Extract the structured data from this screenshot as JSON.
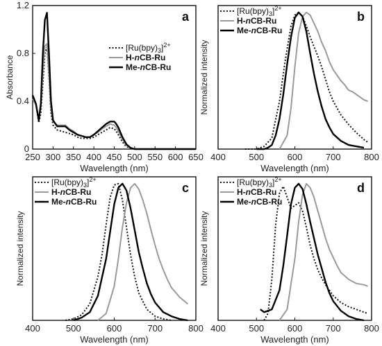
{
  "chart_data": [
    {
      "type": "line",
      "panel_label": "a",
      "xlabel": "Wavelength (nm)",
      "ylabel": "Absorbance",
      "xlim": [
        250,
        650
      ],
      "ylim": [
        0,
        1.2
      ],
      "xticks": [
        "250",
        "300",
        "350",
        "400",
        "450",
        "500",
        "550",
        "600",
        "650"
      ],
      "yticks": [
        "0",
        "0.4",
        "0.8",
        "1.2"
      ],
      "legend_position": "middle-right",
      "series": [
        {
          "name": "[Ru(bpy)3]2+",
          "style": "dotted",
          "color": "#111111",
          "x": [
            250,
            258,
            265,
            270,
            275,
            280,
            285,
            290,
            295,
            300,
            310,
            320,
            330,
            340,
            350,
            360,
            370,
            380,
            390,
            400,
            410,
            420,
            430,
            440,
            450,
            455,
            460,
            470,
            480,
            490,
            500,
            520,
            550,
            600,
            650
          ],
          "y": [
            0.44,
            0.38,
            0.22,
            0.3,
            0.55,
            0.8,
            0.85,
            0.6,
            0.3,
            0.2,
            0.16,
            0.15,
            0.14,
            0.13,
            0.12,
            0.1,
            0.09,
            0.09,
            0.09,
            0.1,
            0.12,
            0.14,
            0.16,
            0.18,
            0.17,
            0.15,
            0.12,
            0.06,
            0.02,
            0.01,
            0.0,
            0.0,
            0.0,
            0.0,
            0.0
          ]
        },
        {
          "name": "H-nCB-Ru",
          "style": "solid",
          "color": "#9a9a9a",
          "x": [
            250,
            258,
            265,
            270,
            275,
            280,
            285,
            290,
            295,
            300,
            310,
            320,
            330,
            340,
            350,
            360,
            370,
            380,
            390,
            400,
            410,
            420,
            430,
            440,
            450,
            455,
            460,
            470,
            480,
            490,
            500,
            520,
            550,
            600,
            650
          ],
          "y": [
            0.42,
            0.37,
            0.25,
            0.35,
            0.65,
            0.86,
            0.88,
            0.62,
            0.34,
            0.23,
            0.2,
            0.2,
            0.2,
            0.17,
            0.15,
            0.12,
            0.11,
            0.1,
            0.1,
            0.12,
            0.14,
            0.17,
            0.19,
            0.21,
            0.2,
            0.18,
            0.15,
            0.08,
            0.03,
            0.01,
            0.0,
            0.0,
            0.0,
            0.0,
            0.0
          ]
        },
        {
          "name": "Me-nCB-Ru",
          "style": "solid",
          "color": "#000000",
          "x": [
            250,
            258,
            265,
            270,
            275,
            280,
            285,
            290,
            295,
            300,
            310,
            320,
            330,
            340,
            350,
            360,
            370,
            380,
            390,
            400,
            410,
            420,
            430,
            440,
            450,
            455,
            460,
            470,
            480,
            490,
            500,
            520,
            550,
            600,
            650
          ],
          "y": [
            0.45,
            0.38,
            0.24,
            0.38,
            0.8,
            1.08,
            1.14,
            0.8,
            0.4,
            0.24,
            0.19,
            0.19,
            0.19,
            0.16,
            0.14,
            0.12,
            0.11,
            0.1,
            0.1,
            0.12,
            0.15,
            0.18,
            0.21,
            0.23,
            0.23,
            0.21,
            0.18,
            0.1,
            0.04,
            0.01,
            0.0,
            0.0,
            0.0,
            0.0,
            0.0
          ]
        }
      ]
    },
    {
      "type": "line",
      "panel_label": "b",
      "xlabel": "Wavelength (nm)",
      "ylabel": "Normalized  intensity",
      "xlim": [
        400,
        800
      ],
      "ylim": [
        0,
        1.05
      ],
      "xticks": [
        "400",
        "500",
        "600",
        "700",
        "800"
      ],
      "yticks": [],
      "legend_position": "top-left",
      "series": [
        {
          "name": "[Ru(bpy)3]2+",
          "style": "dotted",
          "color": "#111111",
          "x": [
            470,
            500,
            520,
            540,
            560,
            575,
            590,
            600,
            610,
            620,
            630,
            640,
            650,
            660,
            670,
            680,
            690,
            700,
            720,
            740,
            760,
            780,
            790
          ],
          "y": [
            0.0,
            0.0,
            0.02,
            0.08,
            0.35,
            0.65,
            0.9,
            0.98,
            1.0,
            0.97,
            0.9,
            0.82,
            0.75,
            0.68,
            0.6,
            0.51,
            0.42,
            0.35,
            0.25,
            0.18,
            0.12,
            0.07,
            0.05
          ]
        },
        {
          "name": "H-nCB-Ru",
          "style": "solid",
          "color": "#9a9a9a",
          "x": [
            560,
            580,
            590,
            600,
            610,
            620,
            630,
            640,
            650,
            660,
            670,
            680,
            690,
            700,
            710,
            720,
            730,
            740,
            750,
            760,
            770,
            780,
            790
          ],
          "y": [
            0.0,
            0.1,
            0.3,
            0.6,
            0.85,
            0.97,
            1.0,
            0.98,
            0.92,
            0.86,
            0.78,
            0.72,
            0.64,
            0.58,
            0.54,
            0.5,
            0.47,
            0.43,
            0.42,
            0.4,
            0.38,
            0.36,
            0.35
          ]
        },
        {
          "name": "Me-nCB-Ru",
          "style": "solid",
          "color": "#000000",
          "x": [
            500,
            520,
            530,
            540,
            550,
            560,
            570,
            580,
            590,
            600,
            610,
            620,
            630,
            640,
            650,
            660,
            670,
            680,
            690,
            700,
            720,
            740,
            760,
            780
          ],
          "y": [
            0.0,
            0.0,
            0.01,
            0.03,
            0.1,
            0.22,
            0.4,
            0.62,
            0.82,
            0.96,
            1.0,
            0.97,
            0.86,
            0.7,
            0.55,
            0.42,
            0.31,
            0.22,
            0.16,
            0.11,
            0.06,
            0.03,
            0.02,
            0.01
          ]
        }
      ]
    },
    {
      "type": "line",
      "panel_label": "c",
      "xlabel": "Wavelength (nm)",
      "ylabel": "Normalized  intensity",
      "xlim": [
        400,
        800
      ],
      "ylim": [
        0,
        1.05
      ],
      "xticks": [
        "400",
        "500",
        "600",
        "700",
        "800"
      ],
      "yticks": [],
      "legend_position": "top-left",
      "series": [
        {
          "name": "[Ru(bpy)3]2+",
          "style": "dotted",
          "color": "#111111",
          "x": [
            480,
            500,
            520,
            540,
            560,
            570,
            580,
            590,
            600,
            610,
            620,
            630,
            640,
            650,
            660,
            680,
            700,
            720,
            740
          ],
          "y": [
            0.0,
            0.01,
            0.04,
            0.12,
            0.32,
            0.48,
            0.7,
            0.9,
            0.99,
            1.0,
            0.88,
            0.68,
            0.48,
            0.32,
            0.2,
            0.08,
            0.03,
            0.01,
            0.0
          ]
        },
        {
          "name": "H-nCB-Ru",
          "style": "solid",
          "color": "#9a9a9a",
          "x": [
            560,
            580,
            600,
            610,
            620,
            630,
            640,
            650,
            660,
            670,
            680,
            690,
            700,
            710,
            720,
            730,
            740,
            760,
            780
          ],
          "y": [
            0.0,
            0.05,
            0.25,
            0.45,
            0.68,
            0.86,
            0.97,
            1.0,
            0.96,
            0.88,
            0.78,
            0.66,
            0.55,
            0.45,
            0.37,
            0.3,
            0.24,
            0.17,
            0.12
          ]
        },
        {
          "name": "Me-nCB-Ru",
          "style": "solid",
          "color": "#000000",
          "x": [
            500,
            520,
            540,
            560,
            580,
            590,
            600,
            610,
            620,
            630,
            640,
            650,
            660,
            670,
            680,
            690,
            700,
            720,
            740,
            760,
            780
          ],
          "y": [
            0.0,
            0.02,
            0.06,
            0.18,
            0.45,
            0.65,
            0.85,
            0.97,
            1.0,
            0.95,
            0.82,
            0.66,
            0.5,
            0.38,
            0.27,
            0.19,
            0.13,
            0.06,
            0.03,
            0.01,
            0.0
          ]
        }
      ]
    },
    {
      "type": "line",
      "panel_label": "d",
      "xlabel": "Wavelength (nm)",
      "ylabel": "Normalized  intensity",
      "xlim": [
        400,
        800
      ],
      "ylim": [
        0,
        1.05
      ],
      "xticks": [
        "400",
        "500",
        "600",
        "700",
        "800"
      ],
      "yticks": [],
      "legend_position": "top-left",
      "series": [
        {
          "name": "[Ru(bpy)3]2+",
          "style": "dotted",
          "color": "#111111",
          "x": [
            520,
            530,
            540,
            550,
            560,
            570,
            580,
            590,
            600,
            610,
            620,
            630,
            640,
            650,
            660,
            670,
            680,
            690,
            700,
            720,
            740,
            760,
            780,
            790
          ],
          "y": [
            0.0,
            0.05,
            0.3,
            0.7,
            0.93,
            0.98,
            0.9,
            0.82,
            0.84,
            0.86,
            0.8,
            0.68,
            0.55,
            0.45,
            0.37,
            0.31,
            0.26,
            0.22,
            0.18,
            0.13,
            0.1,
            0.08,
            0.06,
            0.05
          ]
        },
        {
          "name": "H-nCB-Ru",
          "style": "solid",
          "color": "#9a9a9a",
          "x": [
            560,
            580,
            600,
            610,
            620,
            630,
            640,
            650,
            660,
            670,
            680,
            690,
            700,
            710,
            720,
            740,
            760,
            780,
            790
          ],
          "y": [
            0.0,
            0.08,
            0.45,
            0.72,
            0.92,
            1.0,
            0.97,
            0.9,
            0.8,
            0.7,
            0.6,
            0.52,
            0.46,
            0.4,
            0.35,
            0.3,
            0.27,
            0.26,
            0.25
          ]
        },
        {
          "name": "Me-nCB-Ru",
          "style": "solid",
          "color": "#000000",
          "x": [
            510,
            520,
            540,
            560,
            570,
            580,
            590,
            600,
            610,
            620,
            630,
            640,
            650,
            660,
            670,
            680,
            690,
            700,
            720,
            740,
            760,
            780
          ],
          "y": [
            0.08,
            0.06,
            0.08,
            0.22,
            0.4,
            0.62,
            0.85,
            0.97,
            1.0,
            0.96,
            0.85,
            0.72,
            0.6,
            0.48,
            0.38,
            0.28,
            0.2,
            0.14,
            0.07,
            0.03,
            0.01,
            0.0
          ]
        }
      ]
    }
  ]
}
